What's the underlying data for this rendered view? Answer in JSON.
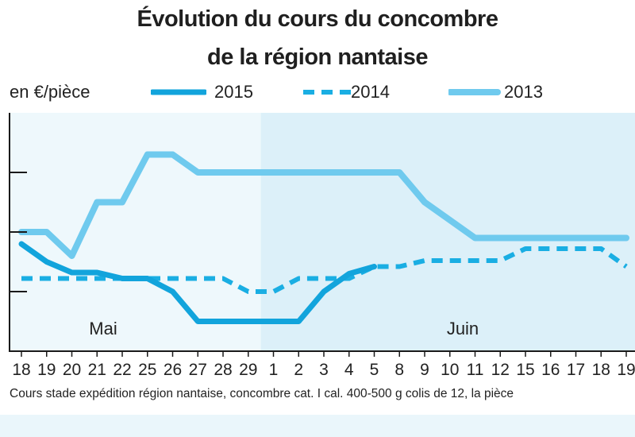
{
  "chart_data": {
    "type": "line",
    "title_line1": "Évolution du cours du concombre",
    "title_line2": "de la région nantaise",
    "ylabel": "en €/pièce",
    "categories": [
      "18",
      "19",
      "20",
      "21",
      "22",
      "25",
      "26",
      "27",
      "28",
      "29",
      "1",
      "2",
      "3",
      "4",
      "5",
      "8",
      "9",
      "10",
      "11",
      "12",
      "15",
      "16",
      "17",
      "18",
      "19"
    ],
    "months": [
      {
        "label": "Mai",
        "start": 0,
        "end": 9
      },
      {
        "label": "Juin",
        "start": 10,
        "end": 24
      }
    ],
    "ylim": [
      0,
      4
    ],
    "yticks": [
      1,
      2,
      3
    ],
    "series": [
      {
        "name": "2015",
        "style": "solid-thick",
        "color": "#12a4dc",
        "values": [
          1.8,
          1.5,
          1.32,
          1.32,
          1.22,
          1.22,
          1.0,
          0.5,
          0.5,
          0.5,
          0.5,
          0.5,
          1.0,
          1.3,
          1.42,
          null,
          null,
          null,
          null,
          null,
          null,
          null,
          null,
          null,
          null
        ]
      },
      {
        "name": "2014",
        "style": "dashed",
        "color": "#1aaee3",
        "values": [
          1.22,
          1.22,
          1.22,
          1.22,
          1.22,
          1.22,
          1.22,
          1.22,
          1.22,
          1.0,
          1.0,
          1.22,
          1.22,
          1.22,
          1.42,
          1.42,
          1.52,
          1.52,
          1.52,
          1.52,
          1.72,
          1.72,
          1.72,
          1.72,
          1.42
        ]
      },
      {
        "name": "2013",
        "style": "solid-light",
        "color": "#6fcaee",
        "values": [
          2.0,
          2.0,
          1.6,
          2.5,
          2.5,
          3.3,
          3.3,
          3.0,
          3.0,
          3.0,
          3.0,
          3.0,
          3.0,
          3.0,
          3.0,
          3.0,
          2.5,
          2.2,
          1.9,
          1.9,
          1.9,
          1.9,
          1.9,
          1.9,
          1.9
        ]
      }
    ],
    "grid": false,
    "legend_position": "top"
  },
  "footnote": "Cours stade expédition région nantaise, concombre cat. I cal. 400-500 g colis de 12, la pièce",
  "colors": {
    "bg_may": "#eef8fc",
    "bg_june": "#dcf0f9",
    "axis": "#1a1a1a"
  }
}
